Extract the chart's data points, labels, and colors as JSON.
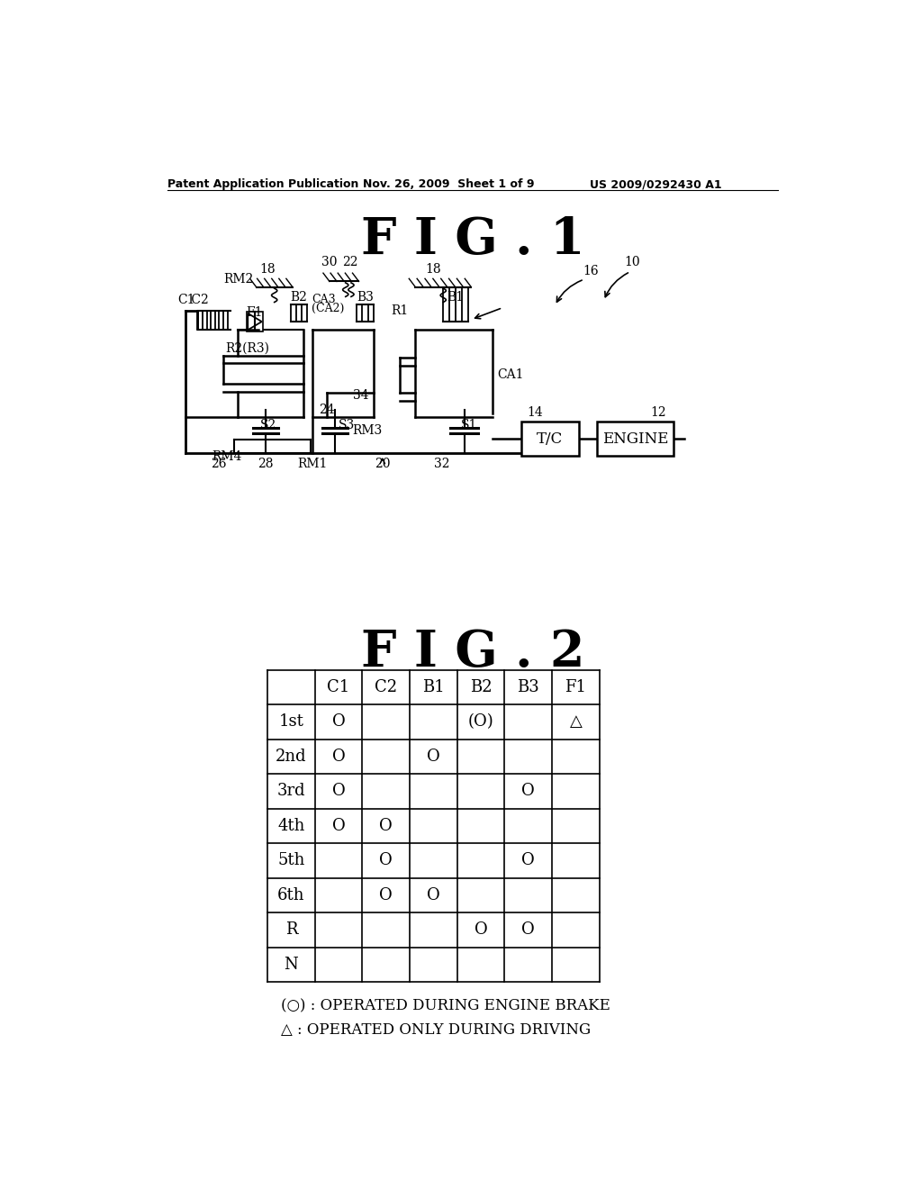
{
  "header_left": "Patent Application Publication",
  "header_mid": "Nov. 26, 2009  Sheet 1 of 9",
  "header_right": "US 2009/0292430 A1",
  "fig1_title": "F I G . 1",
  "fig2_title": "F I G . 2",
  "table_headers": [
    "",
    "C1",
    "C2",
    "B1",
    "B2",
    "B3",
    "F1"
  ],
  "table_rows": [
    {
      "label": "1st",
      "C1": "O",
      "C2": "",
      "B1": "",
      "B2": "(O)",
      "B3": "",
      "F1": "△"
    },
    {
      "label": "2nd",
      "C1": "O",
      "C2": "",
      "B1": "O",
      "B2": "",
      "B3": "",
      "F1": ""
    },
    {
      "label": "3rd",
      "C1": "O",
      "C2": "",
      "B1": "",
      "B2": "",
      "B3": "O",
      "F1": ""
    },
    {
      "label": "4th",
      "C1": "O",
      "C2": "O",
      "B1": "",
      "B2": "",
      "B3": "",
      "F1": ""
    },
    {
      "label": "5th",
      "C1": "",
      "C2": "O",
      "B1": "",
      "B2": "",
      "B3": "O",
      "F1": ""
    },
    {
      "label": "6th",
      "C1": "",
      "C2": "O",
      "B1": "O",
      "B2": "",
      "B3": "",
      "F1": ""
    },
    {
      "label": "R",
      "C1": "",
      "C2": "",
      "B1": "",
      "B2": "O",
      "B3": "O",
      "F1": ""
    },
    {
      "label": "N",
      "C1": "",
      "C2": "",
      "B1": "",
      "B2": "",
      "B3": "",
      "F1": ""
    }
  ],
  "legend1": "(○) : OPERATED DURING ENGINE BRAKE",
  "legend2": "△ : OPERATED ONLY DURING DRIVING",
  "bg_color": "#ffffff",
  "line_color": "#000000",
  "font_color": "#000000"
}
